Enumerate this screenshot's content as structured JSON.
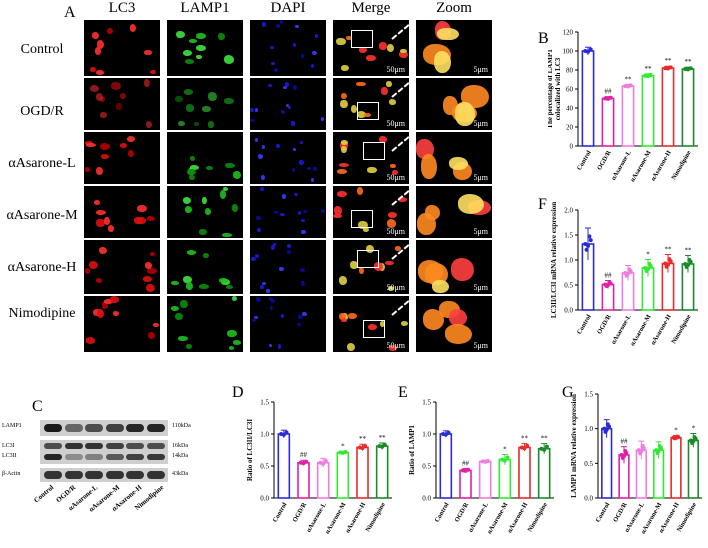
{
  "panel_letters": [
    "A",
    "B",
    "C",
    "D",
    "E",
    "F",
    "G"
  ],
  "micrograph": {
    "columns": [
      "LC3",
      "LAMP1",
      "DAPI",
      "Merge",
      "Zoom"
    ],
    "rows": [
      "Control",
      "OGD/R",
      "αAsarone-L",
      "αAsarone-M",
      "αAsarone-H",
      "Nimodipine"
    ],
    "scale_merge": "50μm",
    "scale_zoom": "5μm"
  },
  "colors": {
    "control": "#2b2bd6",
    "ogdr": "#e31fa6",
    "low": "#f07ce0",
    "mid": "#33e833",
    "high": "#e82a2a",
    "nimodipine": "#1b8a2a"
  },
  "blot": {
    "rows": [
      {
        "left": "LAMP1",
        "right": "110kDa"
      },
      {
        "left": "LC3I",
        "right": "16kDa"
      },
      {
        "left": "LC3II",
        "right": "14kDa"
      },
      {
        "left": "β-Actin",
        "right": "43kDa"
      }
    ],
    "lanes": [
      "Control",
      "OGD/R",
      "αAsarone-L",
      "αAsarone-M",
      "αAsarone-H",
      "Nimodipine"
    ]
  },
  "chart_data": [
    {
      "panel": "B",
      "type": "bar",
      "categories": [
        "Control",
        "OGD/R",
        "αAsarone-L",
        "αAsarone-M",
        "αAsarone-H",
        "Nimodipine"
      ],
      "values": [
        100,
        50,
        63,
        74,
        82,
        81
      ],
      "errors": [
        4,
        2,
        2,
        2,
        2,
        2
      ],
      "annotations": [
        "",
        "##",
        "**",
        "**",
        "**",
        "**"
      ],
      "ylabel": "The percentage of LAMP1 colocalized with LC3",
      "ylim": [
        0,
        120
      ],
      "yticks": [
        0,
        20,
        40,
        60,
        80,
        100,
        120
      ]
    },
    {
      "panel": "F",
      "type": "bar",
      "categories": [
        "Control",
        "OGD/R",
        "αAsarone-L",
        "αAsarone-M",
        "αAsarone-H",
        "Nimodipine"
      ],
      "values": [
        1.32,
        0.51,
        0.74,
        0.84,
        0.93,
        0.92
      ],
      "errors": [
        0.32,
        0.08,
        0.15,
        0.17,
        0.18,
        0.17
      ],
      "annotations": [
        "",
        "##",
        "",
        "*",
        "**",
        "**"
      ],
      "ylabel": "LC3II/LC3I mRNA relative expression",
      "ylim": [
        0,
        2.0
      ],
      "yticks": [
        0.0,
        0.5,
        1.0,
        1.5,
        2.0
      ]
    },
    {
      "panel": "D",
      "type": "bar",
      "categories": [
        "Control",
        "OGD/R",
        "αAsarone-L",
        "αAsarone-M",
        "αAsarone-H",
        "Nimodipine"
      ],
      "values": [
        1.0,
        0.55,
        0.55,
        0.71,
        0.79,
        0.81
      ],
      "errors": [
        0.06,
        0.04,
        0.07,
        0.02,
        0.05,
        0.05
      ],
      "annotations": [
        "",
        "##",
        "",
        "*",
        "**",
        "**"
      ],
      "ylabel": "Ratio of LC3II/LC3I",
      "ylim": [
        0,
        1.5
      ],
      "yticks": [
        0.0,
        0.5,
        1.0,
        1.5
      ]
    },
    {
      "panel": "E",
      "type": "bar",
      "categories": [
        "Control",
        "OGD/R",
        "αAsarone-L",
        "αAsarone-M",
        "αAsarone-H",
        "Nimodipine"
      ],
      "values": [
        1.0,
        0.43,
        0.57,
        0.6,
        0.79,
        0.77
      ],
      "errors": [
        0.05,
        0.03,
        0.02,
        0.08,
        0.06,
        0.08
      ],
      "annotations": [
        "",
        "##",
        "",
        "*",
        "**",
        "**"
      ],
      "ylabel": "Ratio of LAMP1",
      "ylim": [
        0,
        1.5
      ],
      "yticks": [
        0.0,
        0.5,
        1.0,
        1.5
      ]
    },
    {
      "panel": "G",
      "type": "bar",
      "categories": [
        "Control",
        "OGD/R",
        "αAsarone-L",
        "αAsarone-M",
        "αAsarone-H",
        "Nimodipine"
      ],
      "values": [
        1.0,
        0.62,
        0.69,
        0.69,
        0.87,
        0.83
      ],
      "errors": [
        0.13,
        0.12,
        0.13,
        0.12,
        0.03,
        0.1
      ],
      "annotations": [
        "",
        "##",
        "",
        "",
        "*",
        "*"
      ],
      "ylabel": "LAMP1 mRNA relative expression",
      "ylim": [
        0,
        1.5
      ],
      "yticks": [
        0.0,
        0.5,
        1.0,
        1.5
      ]
    }
  ]
}
